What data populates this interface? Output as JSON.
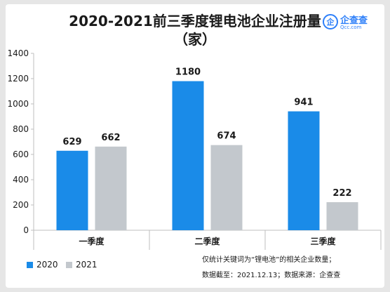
{
  "chart_data": {
    "type": "bar",
    "title": "2020-2021前三季度锂电池企业注册量",
    "subtitle": "（家）",
    "categories": [
      "一季度",
      "二季度",
      "三季度"
    ],
    "series": [
      {
        "name": "2020",
        "color": "#1a8be8",
        "values": [
          629,
          1180,
          941
        ]
      },
      {
        "name": "2021",
        "color": "#c3c8cd",
        "values": [
          662,
          674,
          222
        ]
      }
    ],
    "yticks": [
      "0",
      "200",
      "400",
      "600",
      "800",
      "1000",
      "1200",
      "1400"
    ],
    "ylim": [
      0,
      1400
    ],
    "xlabel": "",
    "ylabel": "",
    "grid": false,
    "legend": "bottom-left"
  },
  "logo": {
    "mark": "企",
    "name": "企查查",
    "sub": "Qcc.com"
  },
  "note": {
    "line1": "仅统计关键词为“锂电池”的相关企业数量；",
    "line2": "数据截至：2021.12.13；数据来源：企查查"
  }
}
